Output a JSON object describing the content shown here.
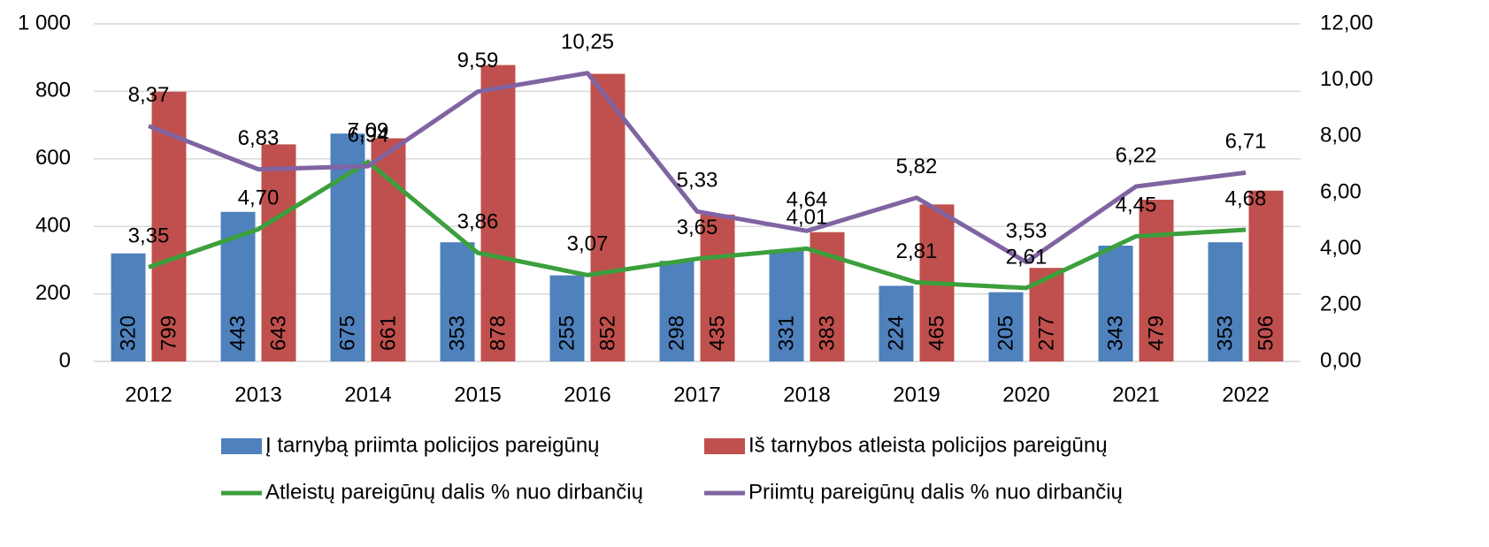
{
  "chart_data": {
    "type": "bar",
    "categories": [
      "2012",
      "2013",
      "2014",
      "2015",
      "2016",
      "2017",
      "2018",
      "2019",
      "2020",
      "2021",
      "2022"
    ],
    "series": [
      {
        "name": "Į tarnybą priimta policijos pareigūnų",
        "type": "bar",
        "color": "#4f81bd",
        "values": [
          320,
          443,
          675,
          353,
          255,
          298,
          331,
          224,
          205,
          343,
          353
        ]
      },
      {
        "name": "Iš tarnybos atleista policijos pareigūnų",
        "type": "bar",
        "color": "#c0504d",
        "values": [
          799,
          643,
          661,
          878,
          852,
          435,
          383,
          465,
          277,
          479,
          506
        ]
      },
      {
        "name": "Atleistų pareigūnų dalis % nuo dirbančių",
        "type": "line",
        "axis": "y2",
        "color": "#3c9f3c",
        "values": [
          3.35,
          4.7,
          7.09,
          3.86,
          3.07,
          3.65,
          4.01,
          2.81,
          2.61,
          4.45,
          4.68
        ],
        "value_labels": [
          "3,35",
          "4,70",
          "7,09",
          "3,86",
          "3,07",
          "3,65",
          "4,01",
          "2,81",
          "2,61",
          "4,45",
          "4,68"
        ]
      },
      {
        "name": "Priimtų pareigūnų dalis % nuo dirbančių",
        "type": "line",
        "axis": "y2",
        "color": "#8064a2",
        "values": [
          8.37,
          6.83,
          6.94,
          9.59,
          10.25,
          5.33,
          4.64,
          5.82,
          3.53,
          6.22,
          6.71
        ],
        "value_labels": [
          "8,37",
          "6,83",
          "6,94",
          "9,59",
          "10,25",
          "5,33",
          "4,64",
          "5,82",
          "3,53",
          "6,22",
          "6,71"
        ]
      }
    ],
    "ylim": [
      0,
      1000
    ],
    "yticks": [
      0,
      200,
      400,
      600,
      800,
      {
        "value": 1000,
        "label": "1 000"
      }
    ],
    "y2lim": [
      0,
      12
    ],
    "y2ticks": [
      {
        "value": 0,
        "label": "0,00"
      },
      {
        "value": 2,
        "label": "2,00"
      },
      {
        "value": 4,
        "label": "4,00"
      },
      {
        "value": 6,
        "label": "6,00"
      },
      {
        "value": 8,
        "label": "8,00"
      },
      {
        "value": 10,
        "label": "10,00"
      },
      {
        "value": 12,
        "label": "12,00"
      }
    ],
    "grid": true,
    "legend": "bottom"
  }
}
